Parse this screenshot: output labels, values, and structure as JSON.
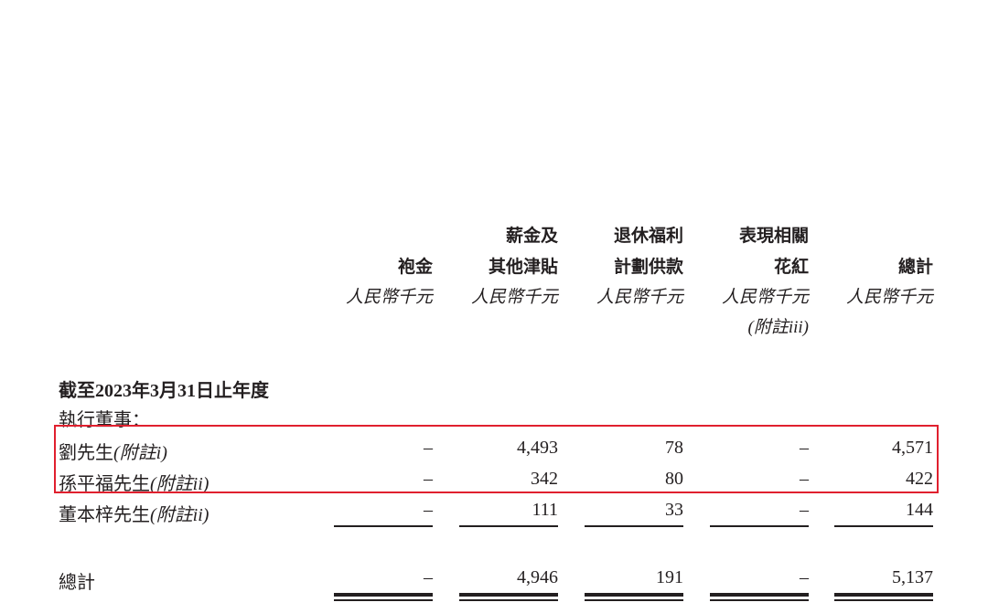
{
  "columns": [
    {
      "line1": "",
      "line2": "袍金",
      "unit": "人民幣千元",
      "note": ""
    },
    {
      "line1": "薪金及",
      "line2": "其他津貼",
      "unit": "人民幣千元",
      "note": ""
    },
    {
      "line1": "退休福利",
      "line2": "計劃供款",
      "unit": "人民幣千元",
      "note": ""
    },
    {
      "line1": "表現相關",
      "line2": "花紅",
      "unit": "人民幣千元",
      "note": "(附註iii)"
    },
    {
      "line1": "",
      "line2": "總計",
      "unit": "人民幣千元",
      "note": ""
    }
  ],
  "section_title": "截至2023年3月31日止年度",
  "group_label": "執行董事：",
  "rows": [
    {
      "name": "劉先生",
      "note": "(附註i)",
      "values": [
        "–",
        "4,493",
        "78",
        "–",
        "4,571"
      ],
      "highlighted": true
    },
    {
      "name": "孫平福先生",
      "note": "(附註ii)",
      "values": [
        "–",
        "342",
        "80",
        "–",
        "422"
      ],
      "highlighted": true
    },
    {
      "name": "董本梓先生",
      "note": "(附註ii)",
      "values": [
        "–",
        "111",
        "33",
        "–",
        "144"
      ],
      "highlighted": false
    }
  ],
  "total": {
    "label": "總計",
    "values": [
      "–",
      "4,946",
      "191",
      "–",
      "5,137"
    ]
  },
  "highlight_color": "#e0202e"
}
